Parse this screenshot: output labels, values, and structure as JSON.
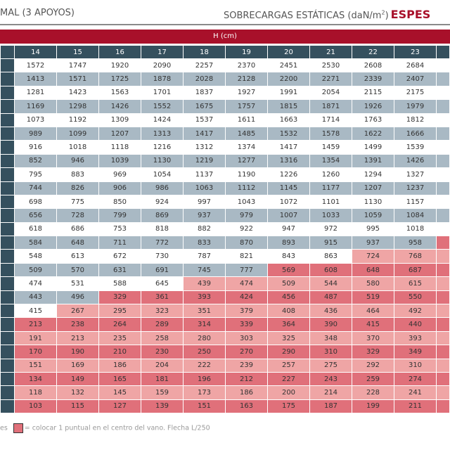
{
  "header": {
    "title_left": "MAL (3 APOYOS)",
    "title_right": "SOBRECARGAS ESTÁTICAS (daN/m",
    "title_right_sup": "2",
    "title_right_close": ")",
    "title_strong": "ESPES"
  },
  "table": {
    "group_header": "H (cm)",
    "columns": [
      "14",
      "15",
      "16",
      "17",
      "18",
      "19",
      "20",
      "21",
      "22",
      "23",
      ""
    ],
    "rows": [
      {
        "values": [
          "1572",
          "1747",
          "1920",
          "2090",
          "2257",
          "2370",
          "2451",
          "2530",
          "2608",
          "2684",
          ""
        ],
        "puntual_from": null
      },
      {
        "values": [
          "1413",
          "1571",
          "1725",
          "1878",
          "2028",
          "2128",
          "2200",
          "2271",
          "2339",
          "2407",
          ""
        ],
        "puntual_from": null
      },
      {
        "values": [
          "1281",
          "1423",
          "1563",
          "1701",
          "1837",
          "1927",
          "1991",
          "2054",
          "2115",
          "2175",
          ""
        ],
        "puntual_from": null
      },
      {
        "values": [
          "1169",
          "1298",
          "1426",
          "1552",
          "1675",
          "1757",
          "1815",
          "1871",
          "1926",
          "1979",
          ""
        ],
        "puntual_from": null
      },
      {
        "values": [
          "1073",
          "1192",
          "1309",
          "1424",
          "1537",
          "1611",
          "1663",
          "1714",
          "1763",
          "1812",
          ""
        ],
        "puntual_from": null
      },
      {
        "values": [
          "989",
          "1099",
          "1207",
          "1313",
          "1417",
          "1485",
          "1532",
          "1578",
          "1622",
          "1666",
          ""
        ],
        "puntual_from": null
      },
      {
        "values": [
          "916",
          "1018",
          "1118",
          "1216",
          "1312",
          "1374",
          "1417",
          "1459",
          "1499",
          "1539",
          ""
        ],
        "puntual_from": null
      },
      {
        "values": [
          "852",
          "946",
          "1039",
          "1130",
          "1219",
          "1277",
          "1316",
          "1354",
          "1391",
          "1426",
          ""
        ],
        "puntual_from": null
      },
      {
        "values": [
          "795",
          "883",
          "969",
          "1054",
          "1137",
          "1190",
          "1226",
          "1260",
          "1294",
          "1327",
          ""
        ],
        "puntual_from": null
      },
      {
        "values": [
          "744",
          "826",
          "906",
          "986",
          "1063",
          "1112",
          "1145",
          "1177",
          "1207",
          "1237",
          ""
        ],
        "puntual_from": null
      },
      {
        "values": [
          "698",
          "775",
          "850",
          "924",
          "997",
          "1043",
          "1072",
          "1101",
          "1130",
          "1157",
          ""
        ],
        "puntual_from": null
      },
      {
        "values": [
          "656",
          "728",
          "799",
          "869",
          "937",
          "979",
          "1007",
          "1033",
          "1059",
          "1084",
          ""
        ],
        "puntual_from": null
      },
      {
        "values": [
          "618",
          "686",
          "753",
          "818",
          "882",
          "922",
          "947",
          "972",
          "995",
          "1018",
          ""
        ],
        "puntual_from": null
      },
      {
        "values": [
          "584",
          "648",
          "711",
          "772",
          "833",
          "870",
          "893",
          "915",
          "937",
          "958",
          ""
        ],
        "puntual_from": 10
      },
      {
        "values": [
          "548",
          "613",
          "672",
          "730",
          "787",
          "821",
          "843",
          "863",
          "724",
          "768",
          ""
        ],
        "puntual_from": 8
      },
      {
        "values": [
          "509",
          "570",
          "631",
          "691",
          "745",
          "777",
          "569",
          "608",
          "648",
          "687",
          ""
        ],
        "puntual_from": 6
      },
      {
        "values": [
          "474",
          "531",
          "588",
          "645",
          "439",
          "474",
          "509",
          "544",
          "580",
          "615",
          ""
        ],
        "puntual_from": 4
      },
      {
        "values": [
          "443",
          "496",
          "329",
          "361",
          "393",
          "424",
          "456",
          "487",
          "519",
          "550",
          ""
        ],
        "puntual_from": 2
      },
      {
        "values": [
          "415",
          "267",
          "295",
          "323",
          "351",
          "379",
          "408",
          "436",
          "464",
          "492",
          ""
        ],
        "puntual_from": 1
      },
      {
        "values": [
          "213",
          "238",
          "264",
          "289",
          "314",
          "339",
          "364",
          "390",
          "415",
          "440",
          ""
        ],
        "puntual_from": 0
      },
      {
        "values": [
          "191",
          "213",
          "235",
          "258",
          "280",
          "303",
          "325",
          "348",
          "370",
          "393",
          ""
        ],
        "puntual_from": 0
      },
      {
        "values": [
          "170",
          "190",
          "210",
          "230",
          "250",
          "270",
          "290",
          "310",
          "329",
          "349",
          ""
        ],
        "puntual_from": 0
      },
      {
        "values": [
          "151",
          "169",
          "186",
          "204",
          "222",
          "239",
          "257",
          "275",
          "292",
          "310",
          ""
        ],
        "puntual_from": 0
      },
      {
        "values": [
          "134",
          "149",
          "165",
          "181",
          "196",
          "212",
          "227",
          "243",
          "259",
          "274",
          ""
        ],
        "puntual_from": 0
      },
      {
        "values": [
          "118",
          "132",
          "145",
          "159",
          "173",
          "186",
          "200",
          "214",
          "228",
          "241",
          ""
        ],
        "puntual_from": 0
      },
      {
        "values": [
          "103",
          "115",
          "127",
          "139",
          "151",
          "163",
          "175",
          "187",
          "199",
          "211",
          ""
        ],
        "puntual_from": 0
      }
    ]
  },
  "legend": {
    "prefix": "es",
    "text": "= colocar 1 puntual en el centro del vano. Flecha L/250"
  },
  "colors": {
    "brand_red": "#a8102a",
    "header_dark": "#35505e",
    "row_gray": "#a9b9c4",
    "puntual_dark": "#e0707a",
    "puntual_light": "#efa5a5"
  }
}
